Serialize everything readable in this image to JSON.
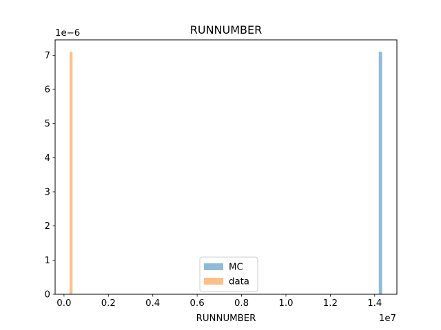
{
  "chart_data": {
    "type": "bar",
    "title": "RUNNUMBER",
    "xlabel": "RUNNUMBER",
    "ylabel": "",
    "x_offset_label": "1e7",
    "y_offset_label": "1e−6",
    "xlim": [
      -0.04,
      1.5
    ],
    "ylim": [
      0,
      7.45
    ],
    "x_ticks": [
      0.0,
      0.2,
      0.4,
      0.6,
      0.8,
      1.0,
      1.2,
      1.4
    ],
    "x_tick_labels": [
      "0.0",
      "0.2",
      "0.4",
      "0.6",
      "0.8",
      "1.0",
      "1.2",
      "1.4"
    ],
    "y_ticks": [
      0,
      1,
      2,
      3,
      4,
      5,
      6,
      7
    ],
    "y_tick_labels": [
      "0",
      "1",
      "2",
      "3",
      "4",
      "5",
      "6",
      "7"
    ],
    "grid": false,
    "legend_position": "lower center",
    "series": [
      {
        "name": "MC",
        "color": "#1f77b4",
        "opacity": 0.5,
        "bars": [
          {
            "x0": 1.4185,
            "x1": 1.4335,
            "value": 7.1
          }
        ]
      },
      {
        "name": "data",
        "color": "#ff7f0e",
        "opacity": 0.5,
        "bars": [
          {
            "x0": 0.0255,
            "x1": 0.0385,
            "value": 7.1
          }
        ]
      }
    ]
  }
}
